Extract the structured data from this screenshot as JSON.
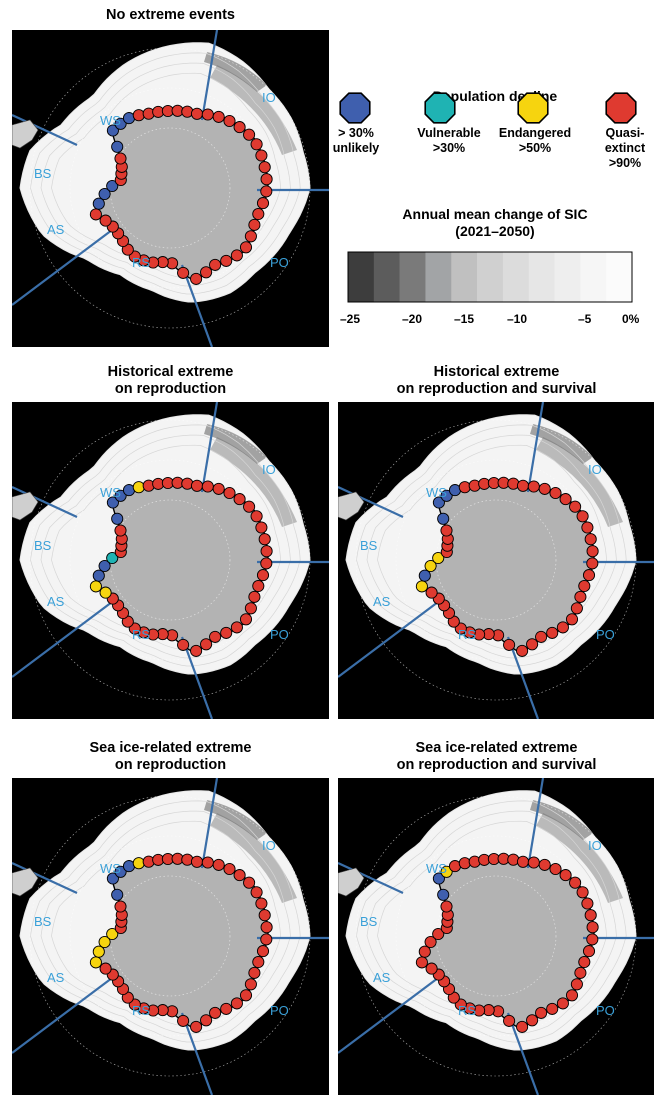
{
  "panels": [
    {
      "id": "p1",
      "title_lines": [
        "No extreme events",
        ""
      ]
    },
    {
      "id": "p2",
      "title_lines": [
        "Historical extreme",
        "on reproduction"
      ]
    },
    {
      "id": "p3",
      "title_lines": [
        "Historical extreme",
        "on reproduction and survival"
      ]
    },
    {
      "id": "p4",
      "title_lines": [
        "Sea ice-related extreme",
        "on reproduction"
      ]
    },
    {
      "id": "p5",
      "title_lines": [
        "Sea ice-related extreme",
        "on reproduction and survival"
      ]
    }
  ],
  "region_labels": [
    "WS",
    "IO",
    "BS",
    "AS",
    "RS",
    "PO"
  ],
  "legend": {
    "title": "Population decline",
    "categories": [
      {
        "lines": [
          "> 30%",
          "unlikely"
        ],
        "color": "#3f5fae"
      },
      {
        "lines": [
          "Vulnerable",
          ">30%"
        ],
        "color": "#1fb3b3"
      },
      {
        "lines": [
          "Endangered",
          ">50%"
        ],
        "color": "#f6d40f"
      },
      {
        "lines": [
          "Quasi-",
          "extinct",
          ">90%"
        ],
        "color": "#df3a30"
      }
    ]
  },
  "colorbar": {
    "title_lines": [
      "Annual mean change of SIC",
      "(2021–2050)"
    ],
    "ticks": [
      "–25",
      "–20",
      "–15",
      "–10",
      "–5",
      "0%"
    ],
    "colors": [
      "#3d3d3d",
      "#5c5c5c",
      "#7a7a7a",
      "#a2a4a6",
      "#c0c0c0",
      "#d0d0d0",
      "#dcdcdc",
      "#e6e6e6",
      "#eeeeee",
      "#f6f6f6",
      "#fbfbfb"
    ]
  },
  "colonies": {
    "p1": {
      "blue": 7,
      "cyan": 0,
      "yellow": 0,
      "red": 43
    },
    "p2": {
      "blue": 6,
      "cyan": 1,
      "yellow": 3,
      "red": 40
    },
    "p3": {
      "blue": 5,
      "cyan": 0,
      "yellow": 3,
      "red": 42
    },
    "p4": {
      "blue": 4,
      "cyan": 0,
      "yellow": 5,
      "red": 41
    },
    "p5": {
      "blue": 2,
      "cyan": 0,
      "yellow": 1,
      "red": 47
    }
  }
}
